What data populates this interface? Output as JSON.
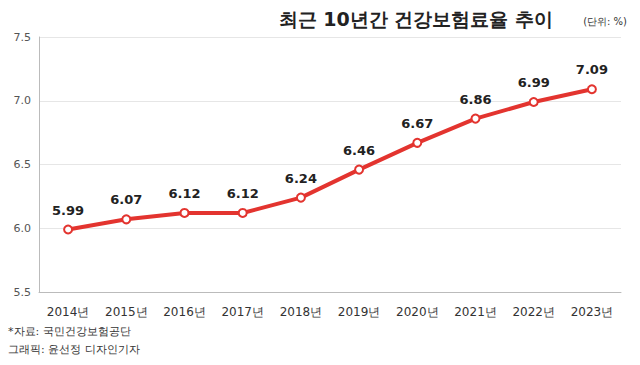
{
  "chart_data": {
    "type": "line",
    "title": "최근 10년간 건강보험료율 추이",
    "subtitle": "(단위: %)",
    "categories": [
      "2014년",
      "2015년",
      "2016년",
      "2017년",
      "2018년",
      "2019년",
      "2020년",
      "2021년",
      "2022년",
      "2023년"
    ],
    "values": [
      5.99,
      6.07,
      6.12,
      6.12,
      6.24,
      6.46,
      6.67,
      6.86,
      6.99,
      7.09
    ],
    "color": "#e3342f",
    "marker": "circle",
    "data_labels": true,
    "ylim": [
      5.5,
      7.5
    ],
    "yticks": [
      5.5,
      {
        "value": 6,
        "label": "6.0"
      },
      6.5,
      {
        "value": 7,
        "label": "7.0"
      },
      7.5
    ],
    "grid": true,
    "annotations": [
      "*자료: 국민건강보험공단",
      "그래픽: 윤선정 디자인기자"
    ]
  }
}
